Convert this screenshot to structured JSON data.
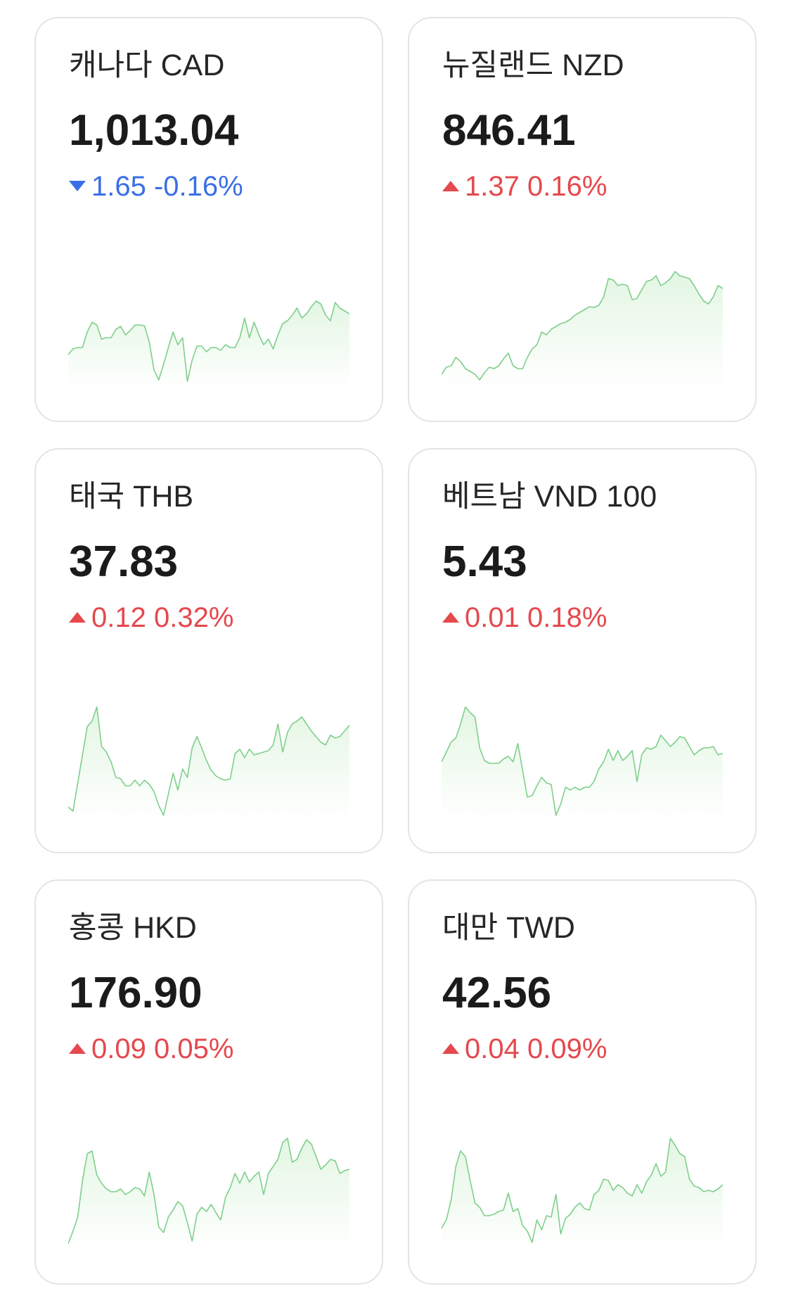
{
  "accent": {
    "up": "#e5484d",
    "down": "#3a6fe6",
    "chart_line": "#7fcf8c",
    "chart_fill": "#e3f6e3"
  },
  "cards": [
    {
      "name": "캐나다 CAD",
      "price": "1,013.04",
      "direction": "down",
      "change_amount": "1.65",
      "change_percent": "-0.16%",
      "spark": [
        48,
        56,
        58,
        58,
        80,
        94,
        90,
        70,
        72,
        72,
        84,
        88,
        76,
        82,
        90,
        90,
        89,
        66,
        26,
        12,
        34,
        58,
        80,
        62,
        72,
        10,
        40,
        60,
        60,
        52,
        58,
        58,
        54,
        62,
        58,
        58,
        72,
        100,
        72,
        94,
        76,
        62,
        70,
        56,
        76,
        92,
        96,
        104,
        114,
        100,
        106,
        116,
        124,
        120,
        104,
        96,
        122,
        114,
        110,
        106
      ]
    },
    {
      "name": "뉴질랜드 NZD",
      "price": "846.41",
      "direction": "up",
      "change_amount": "1.37",
      "change_percent": "0.16%",
      "spark": [
        20,
        30,
        32,
        44,
        38,
        28,
        24,
        20,
        12,
        22,
        30,
        28,
        32,
        42,
        50,
        32,
        28,
        28,
        44,
        56,
        62,
        80,
        76,
        84,
        88,
        92,
        94,
        98,
        104,
        108,
        112,
        116,
        115,
        118,
        130,
        156,
        154,
        146,
        148,
        146,
        126,
        128,
        140,
        152,
        154,
        160,
        146,
        150,
        156,
        166,
        160,
        158,
        156,
        146,
        134,
        124,
        120,
        130,
        146,
        142
      ]
    },
    {
      "name": "태국 THB",
      "price": "37.83",
      "direction": "up",
      "change_amount": "0.12",
      "change_percent": "0.32%",
      "spark": [
        18,
        12,
        52,
        92,
        132,
        140,
        160,
        104,
        96,
        82,
        60,
        58,
        48,
        48,
        56,
        48,
        56,
        50,
        40,
        20,
        6,
        36,
        66,
        42,
        72,
        60,
        102,
        118,
        102,
        84,
        70,
        62,
        58,
        56,
        58,
        94,
        100,
        88,
        100,
        92,
        94,
        96,
        98,
        106,
        136,
        96,
        124,
        136,
        140,
        146,
        136,
        126,
        118,
        110,
        106,
        120,
        116,
        118,
        126,
        134
      ]
    },
    {
      "name": "베트남 VND 100",
      "price": "5.43",
      "direction": "up",
      "change_amount": "0.01",
      "change_percent": "0.18%",
      "spark": [
        82,
        96,
        110,
        116,
        136,
        160,
        152,
        146,
        102,
        84,
        80,
        80,
        80,
        86,
        90,
        82,
        108,
        70,
        32,
        34,
        48,
        60,
        52,
        50,
        6,
        22,
        46,
        42,
        46,
        42,
        46,
        46,
        54,
        72,
        82,
        100,
        84,
        98,
        84,
        90,
        98,
        54,
        92,
        102,
        100,
        104,
        120,
        112,
        104,
        110,
        118,
        116,
        104,
        92,
        98,
        102,
        102,
        104,
        92,
        94
      ]
    },
    {
      "name": "홍콩 HKD",
      "price": "176.90",
      "direction": "up",
      "change_amount": "0.09",
      "change_percent": "0.05%",
      "spark": [
        10,
        28,
        48,
        100,
        138,
        142,
        108,
        96,
        88,
        84,
        84,
        88,
        80,
        84,
        90,
        88,
        78,
        112,
        80,
        34,
        26,
        48,
        58,
        70,
        64,
        40,
        14,
        52,
        62,
        56,
        66,
        54,
        44,
        76,
        90,
        110,
        96,
        112,
        98,
        106,
        112,
        80,
        110,
        120,
        130,
        154,
        160,
        126,
        130,
        146,
        158,
        152,
        134,
        116,
        122,
        130,
        128,
        110,
        114,
        116
      ]
    },
    {
      "name": "대만 TWD",
      "price": "42.56",
      "direction": "up",
      "change_amount": "0.04",
      "change_percent": "0.09%",
      "spark": [
        32,
        44,
        72,
        120,
        142,
        134,
        100,
        68,
        62,
        50,
        50,
        52,
        56,
        58,
        82,
        56,
        60,
        36,
        28,
        12,
        44,
        30,
        50,
        48,
        80,
        24,
        46,
        52,
        62,
        68,
        60,
        58,
        80,
        86,
        102,
        100,
        86,
        94,
        90,
        82,
        78,
        94,
        82,
        98,
        108,
        124,
        106,
        112,
        160,
        150,
        138,
        134,
        102,
        92,
        90,
        84,
        86,
        84,
        88,
        94
      ]
    }
  ]
}
